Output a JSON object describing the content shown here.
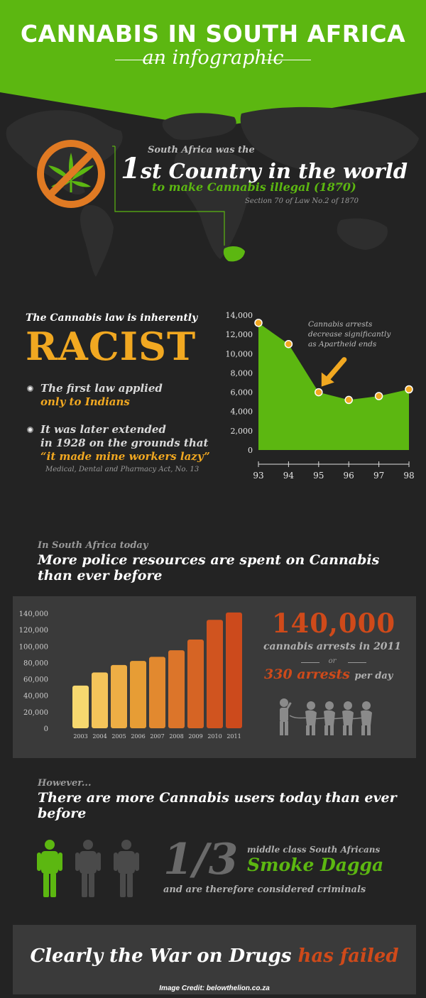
{
  "header": {
    "title": "CANNABIS IN SOUTH AFRICA",
    "subtitle": "an infographic"
  },
  "colors": {
    "green": "#5cb711",
    "orange": "#f1a821",
    "red": "#cf4a1a",
    "background": "#232323",
    "panel": "#3a3a3a"
  },
  "icons": [
    "no-cannabis-icon",
    "world-map",
    "soldier-icon",
    "prisoner-icon",
    "person-icon"
  ],
  "first_country": {
    "lead": "South Africa was the",
    "ordinal_number": "1",
    "ordinal_suffix": "st Country in the world",
    "highlight": "to make Cannabis illegal (1870)",
    "source": "Section 70 of Law No.2 of 1870"
  },
  "racist": {
    "intro": "The Cannabis law is inherently",
    "headline": "RACIST",
    "bullet1_text": "The first law applied",
    "bullet1_highlight": "only to Indians",
    "bullet2_line1": "It was later extended",
    "bullet2_line2": "in 1928 on the grounds that",
    "bullet2_highlight": "“it made mine workers lazy”",
    "source": "Medical, Dental and Pharmacy Act, No. 13"
  },
  "police": {
    "kicker": "In South Africa today",
    "headline": "More police resources are spent on Cannabis than ever before",
    "stat_big": "140,000",
    "stat_line": "cannabis arrests in 2011",
    "or": "or",
    "perday_value": "330 arrests",
    "perday_label": "per day"
  },
  "users": {
    "kicker": "However...",
    "headline": "There are more Cannabis users today than ever before",
    "fraction": "1/3",
    "line_top": "middle class South Africans",
    "line_green": "Smoke Dagga",
    "line_bottom": "and are therefore considered criminals",
    "people_total": 3,
    "people_highlighted": 1
  },
  "conclusion": {
    "text_start": "Clearly the War on Drugs",
    "text_highlight": "has failed",
    "credit": "Image Credit: belowthelion.co.za"
  },
  "chart_data": [
    {
      "type": "area",
      "title": "",
      "annotation": "Cannabis arrests decrease significantly as Apartheid ends",
      "x": [
        "93",
        "94",
        "95",
        "96",
        "97",
        "98"
      ],
      "values": [
        13200,
        11000,
        6000,
        5200,
        5600,
        6300
      ],
      "y_ticks": [
        "0",
        "2,000",
        "4,000",
        "6,000",
        "8,000",
        "10,000",
        "12,000",
        "14,000"
      ],
      "ylim": [
        0,
        14000
      ],
      "color": "#5cb711",
      "marker_color": "#f1a821"
    },
    {
      "type": "bar",
      "title": "",
      "categories": [
        "2003",
        "2004",
        "2005",
        "2006",
        "2007",
        "2008",
        "2009",
        "2010",
        "2011"
      ],
      "values": [
        52000,
        68000,
        77000,
        82000,
        87000,
        95000,
        108000,
        132000,
        141000
      ],
      "y_ticks": [
        "0",
        "20,000",
        "40,000",
        "60,000",
        "80,000",
        "100,000",
        "120,000",
        "140,000"
      ],
      "ylim": [
        0,
        140000
      ],
      "colors": [
        "#f6d86f",
        "#f4c45a",
        "#eeae45",
        "#e79d35",
        "#e2892f",
        "#dc752a",
        "#d66424",
        "#d0541f",
        "#cc4a1c"
      ]
    }
  ]
}
